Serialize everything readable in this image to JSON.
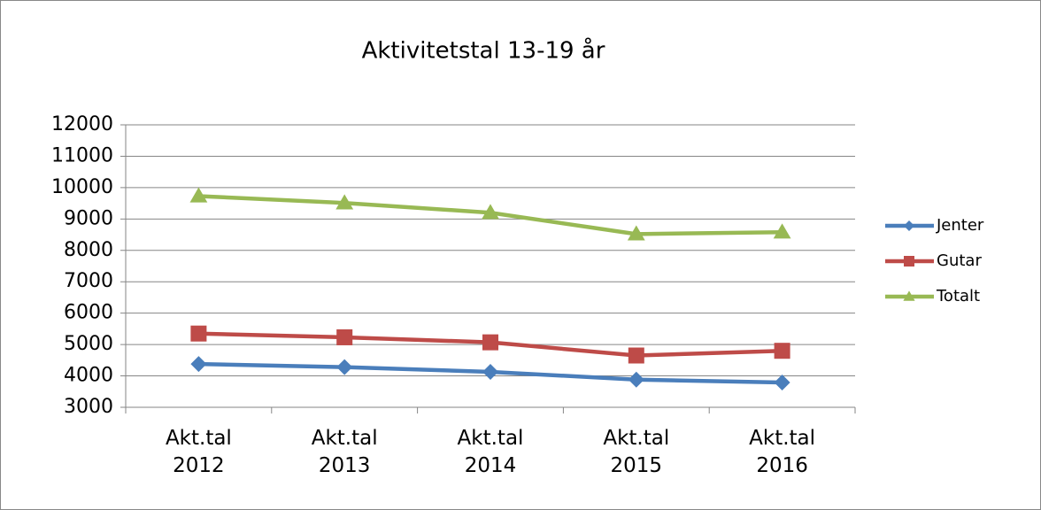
{
  "chart_data": {
    "type": "line",
    "title": "Aktivitetstal 13-19 år",
    "categories": [
      "Akt.tal 2012",
      "Akt.tal 2013",
      "Akt.tal 2014",
      "Akt.tal 2015",
      "Akt.tal 2016"
    ],
    "series": [
      {
        "name": "Jenter",
        "color": "#4a7ebb",
        "marker": "diamond",
        "values": [
          4380,
          4280,
          4130,
          3880,
          3790
        ]
      },
      {
        "name": "Gutar",
        "color": "#be4b48",
        "marker": "square",
        "values": [
          5350,
          5230,
          5070,
          4650,
          4800
        ]
      },
      {
        "name": "Totalt",
        "color": "#98b954",
        "marker": "triangle",
        "values": [
          9730,
          9510,
          9200,
          8520,
          8580
        ]
      }
    ],
    "ylim": [
      3000,
      12000
    ],
    "yticks": [
      3000,
      4000,
      5000,
      6000,
      7000,
      8000,
      9000,
      10000,
      11000,
      12000
    ],
    "grid": true,
    "legend": "right"
  }
}
